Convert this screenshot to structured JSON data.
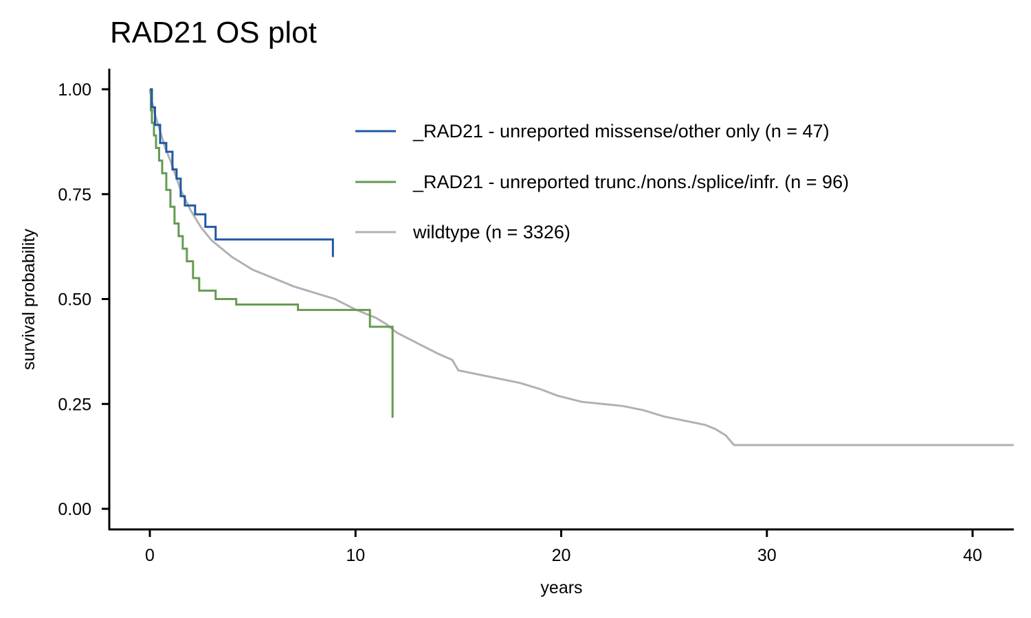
{
  "chart_data": {
    "type": "line",
    "title": "RAD21 OS plot",
    "xlabel": "years",
    "ylabel": "survival probability",
    "xlim": [
      -2,
      42
    ],
    "ylim": [
      -0.05,
      1.05
    ],
    "x_ticks": [
      0,
      10,
      20,
      30,
      40
    ],
    "x_tick_labels": [
      "0",
      "10",
      "20",
      "30",
      "40"
    ],
    "y_ticks": [
      0,
      0.25,
      0.5,
      0.75,
      1
    ],
    "y_tick_labels": [
      "0.00",
      "0.25",
      "0.50",
      "0.75",
      "1.00"
    ],
    "grid": false,
    "legend_position": "top-right",
    "series": [
      {
        "name": "_RAD21 - unreported missense/other only (n = 47)",
        "color": "#2158a3",
        "step": true,
        "x": [
          0,
          0.1,
          0.25,
          0.5,
          0.8,
          1.1,
          1.3,
          1.5,
          1.7,
          2.2,
          2.7,
          3.2,
          8.9
        ],
        "y": [
          1.0,
          0.957,
          0.915,
          0.872,
          0.851,
          0.809,
          0.787,
          0.745,
          0.723,
          0.702,
          0.672,
          0.642,
          0.6
        ]
      },
      {
        "name": "_RAD21 - unreported trunc./nons./splice/infr. (n = 96)",
        "color": "#659a52",
        "step": true,
        "x": [
          0,
          0.05,
          0.1,
          0.2,
          0.3,
          0.45,
          0.6,
          0.8,
          1.0,
          1.2,
          1.4,
          1.6,
          1.8,
          2.1,
          2.4,
          3.2,
          4.2,
          7.2,
          10.7,
          11.8
        ],
        "y": [
          1.0,
          0.95,
          0.92,
          0.89,
          0.86,
          0.83,
          0.8,
          0.76,
          0.72,
          0.68,
          0.65,
          0.62,
          0.59,
          0.55,
          0.52,
          0.5,
          0.487,
          0.474,
          0.434,
          0.217
        ]
      },
      {
        "name": "wildtype (n = 3326)",
        "color": "#b1b1b1",
        "step": false,
        "x": [
          0,
          0.1,
          0.25,
          0.5,
          0.75,
          1.0,
          1.5,
          2.0,
          2.5,
          3.0,
          3.5,
          4.0,
          5.0,
          6.0,
          7.0,
          8.0,
          9.0,
          10.0,
          11.0,
          11.5,
          12.0,
          13.0,
          14.0,
          14.7,
          15.0,
          16.0,
          17.0,
          18.0,
          19.0,
          19.8,
          21.0,
          22.0,
          23.0,
          24.0,
          25.0,
          26.0,
          27.0,
          27.5,
          28.0,
          28.4,
          35.0,
          42.0
        ],
        "y": [
          1.0,
          0.97,
          0.94,
          0.9,
          0.86,
          0.83,
          0.76,
          0.71,
          0.67,
          0.64,
          0.62,
          0.6,
          0.57,
          0.55,
          0.53,
          0.515,
          0.5,
          0.475,
          0.455,
          0.44,
          0.42,
          0.395,
          0.37,
          0.355,
          0.33,
          0.32,
          0.31,
          0.3,
          0.285,
          0.27,
          0.255,
          0.25,
          0.245,
          0.235,
          0.22,
          0.21,
          0.2,
          0.19,
          0.175,
          0.152,
          0.152,
          0.152
        ]
      }
    ]
  }
}
